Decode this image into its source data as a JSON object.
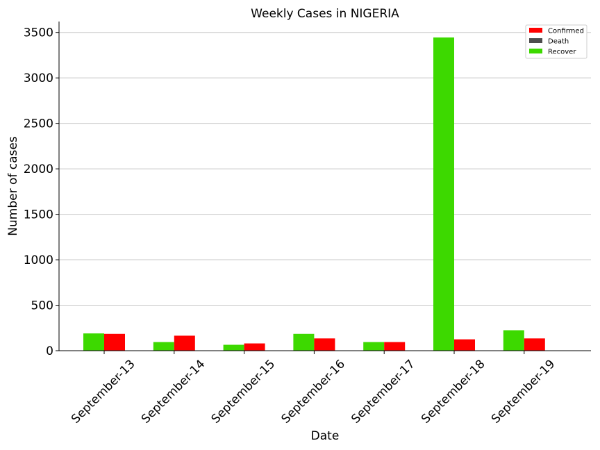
{
  "chart_data": {
    "type": "bar",
    "title": "Weekly Cases in NIGERIA",
    "xlabel": "Date",
    "ylabel": "Number of cases",
    "ylim": [
      0,
      3620
    ],
    "yticks": [
      0,
      500,
      1000,
      1500,
      2000,
      2500,
      3000,
      3500
    ],
    "grid": "horizontal",
    "legend_position": "top-right",
    "categories": [
      "September-13",
      "September-14",
      "September-15",
      "September-16",
      "September-17",
      "September-18",
      "September-19"
    ],
    "series": [
      {
        "name": "Confirmed",
        "color": "#ff0000",
        "values": [
          185,
          165,
          80,
          135,
          95,
          125,
          135
        ]
      },
      {
        "name": "Death",
        "color": "#4d4d4d",
        "values": [
          1,
          1,
          0,
          1,
          0,
          0,
          1
        ]
      },
      {
        "name": "Recover",
        "color": "#3dd900",
        "values": [
          190,
          95,
          65,
          185,
          95,
          3445,
          225
        ]
      }
    ]
  }
}
